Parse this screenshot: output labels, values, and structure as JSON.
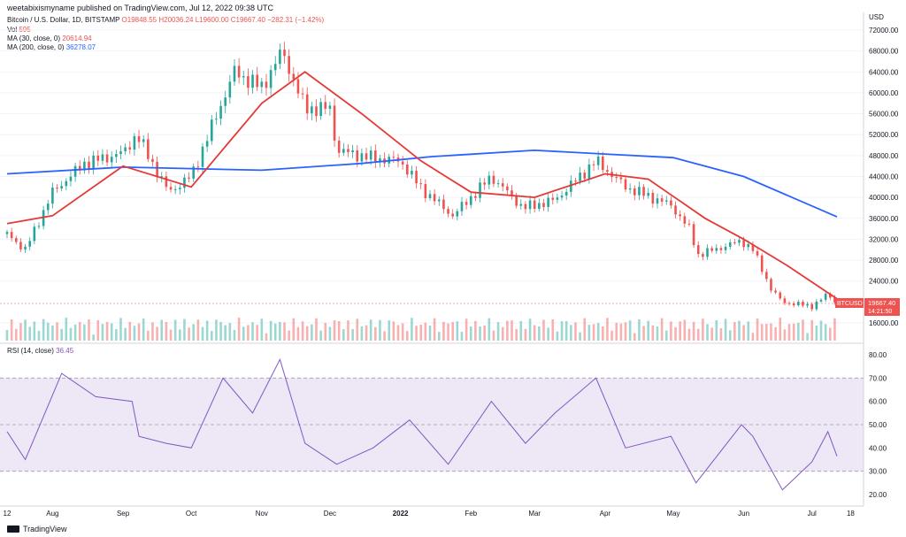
{
  "header": {
    "published": "weetabixismyname published on TradingView.com, Jul 12, 2022 09:38 UTC"
  },
  "legend": {
    "symbol": "Bitcoin / U.S. Dollar, 1D, BITSTAMP",
    "ohlc": "O19848.55  H20036.24  L19600.00  C19667.40  −282.31 (−1.42%)",
    "vol_label": "Vol",
    "vol_value": "595",
    "ma30_label": "MA (30, close, 0)",
    "ma30_value": "20614.94",
    "ma200_label": "MA (200, close, 0)",
    "ma200_value": "36278.07",
    "rsi_label": "RSI (14, close)",
    "rsi_value": "36.45"
  },
  "price_axis": {
    "currency": "USD",
    "ticks": [
      "72000.00",
      "68000.00",
      "64000.00",
      "60000.00",
      "56000.00",
      "52000.00",
      "48000.00",
      "44000.00",
      "40000.00",
      "36000.00",
      "32000.00",
      "28000.00",
      "24000.00",
      "16000.00"
    ],
    "badge_symbol": "BTCUSD",
    "badge_price": "19667.40",
    "badge_time": "14:21:50"
  },
  "rsi_axis": {
    "ticks": [
      "80.00",
      "70.00",
      "60.00",
      "50.00",
      "40.00",
      "30.00",
      "20.00"
    ]
  },
  "time_axis": {
    "labels": [
      "12",
      "Aug",
      "Sep",
      "Oct",
      "Nov",
      "Dec",
      "2022",
      "Feb",
      "Mar",
      "Apr",
      "May",
      "Jun",
      "Jul",
      "18"
    ]
  },
  "footer": {
    "brand": "TradingView"
  },
  "colors": {
    "up": "#26a69a",
    "down": "#ef5350",
    "ma30": "#e53935",
    "ma200": "#2962ff",
    "rsi": "#7e57c2",
    "rsi_band": "#ede7f6"
  },
  "chart_data": {
    "type": "candlestick",
    "symbol": "BTCUSD",
    "ylim": [
      16000,
      74000
    ],
    "close_series": {
      "x": [
        "2021-07-12",
        "2021-07-20",
        "2021-08-01",
        "2021-08-15",
        "2021-09-01",
        "2021-09-07",
        "2021-09-21",
        "2021-10-01",
        "2021-10-20",
        "2021-11-01",
        "2021-11-10",
        "2021-11-20",
        "2021-12-01",
        "2021-12-04",
        "2021-12-20",
        "2022-01-01",
        "2022-01-10",
        "2022-01-24",
        "2022-02-10",
        "2022-02-24",
        "2022-03-10",
        "2022-03-28",
        "2022-04-10",
        "2022-04-30",
        "2022-05-08",
        "2022-05-12",
        "2022-05-31",
        "2022-06-05",
        "2022-06-13",
        "2022-06-18",
        "2022-07-01",
        "2022-07-08",
        "2022-07-12"
      ],
      "values": [
        33000,
        30000,
        41000,
        46500,
        48500,
        52000,
        41000,
        44000,
        64000,
        61000,
        68000,
        57000,
        57000,
        49000,
        47500,
        47000,
        41800,
        36500,
        44000,
        38000,
        39500,
        47000,
        42000,
        38500,
        34000,
        29000,
        31700,
        30000,
        22500,
        20000,
        19200,
        21500,
        19667
      ]
    },
    "ma30": {
      "x": [
        "2021-07-12",
        "2021-08-01",
        "2021-09-01",
        "2021-10-01",
        "2021-11-01",
        "2021-11-20",
        "2021-12-15",
        "2022-01-10",
        "2022-02-01",
        "2022-03-01",
        "2022-04-01",
        "2022-04-20",
        "2022-05-15",
        "2022-06-01",
        "2022-06-20",
        "2022-07-12"
      ],
      "values": [
        35000,
        36500,
        46000,
        42000,
        58000,
        64000,
        56000,
        47000,
        41000,
        40000,
        44500,
        43500,
        36000,
        32000,
        27000,
        20615
      ]
    },
    "ma200": {
      "x": [
        "2021-07-12",
        "2021-09-01",
        "2021-11-01",
        "2021-12-15",
        "2022-01-15",
        "2022-03-01",
        "2022-04-01",
        "2022-05-01",
        "2022-06-01",
        "2022-07-12"
      ],
      "values": [
        44500,
        45800,
        45200,
        46500,
        47800,
        49000,
        48300,
        47600,
        44000,
        36278
      ]
    },
    "rsi": {
      "x": [
        "2021-07-12",
        "2021-07-20",
        "2021-08-05",
        "2021-08-20",
        "2021-09-05",
        "2021-09-08",
        "2021-09-20",
        "2021-10-01",
        "2021-10-15",
        "2021-10-28",
        "2021-11-09",
        "2021-11-20",
        "2021-12-04",
        "2021-12-20",
        "2022-01-05",
        "2022-01-22",
        "2022-02-10",
        "2022-02-25",
        "2022-03-10",
        "2022-03-28",
        "2022-04-10",
        "2022-04-30",
        "2022-05-11",
        "2022-05-31",
        "2022-06-05",
        "2022-06-18",
        "2022-07-01",
        "2022-07-08",
        "2022-07-12"
      ],
      "values": [
        47,
        35,
        72,
        62,
        60,
        45,
        42,
        40,
        70,
        55,
        78,
        42,
        33,
        40,
        52,
        33,
        60,
        42,
        55,
        70,
        40,
        45,
        25,
        50,
        45,
        22,
        34,
        47,
        36.45
      ],
      "ylim": [
        15,
        85
      ],
      "overbought": 70,
      "oversold": 30,
      "mid": 50
    }
  }
}
